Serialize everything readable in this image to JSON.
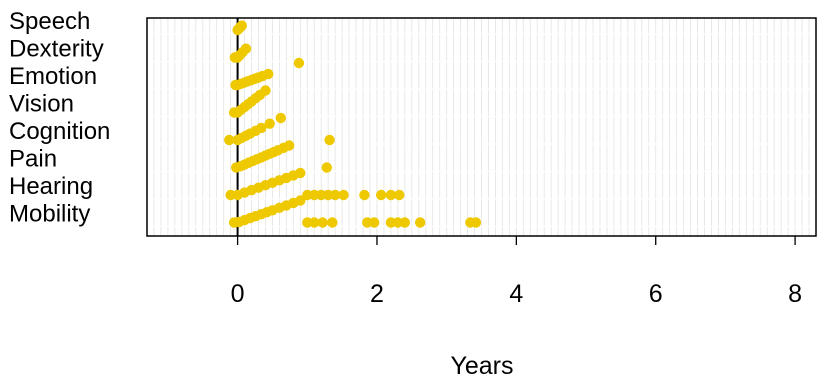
{
  "colors": {
    "points": "#EEC900",
    "zero_line": "#000000",
    "grid": "#E6E6E6",
    "frame": "#000000",
    "background": "#FFFFFF"
  },
  "chart_data": {
    "type": "scatter",
    "title": "",
    "xlabel": "Years",
    "ylabel": "",
    "xlim": [
      -1.3,
      8.3
    ],
    "x_ticks": [
      0,
      2,
      4,
      6,
      8
    ],
    "x_tick_labels": [
      "0",
      "2",
      "4",
      "6",
      "8"
    ],
    "categories": [
      "Speech",
      "Dexterity",
      "Emotion",
      "Vision",
      "Cognition",
      "Pain",
      "Hearing",
      "Mobility"
    ],
    "reference_line_x": 0,
    "grid": "vertical, light",
    "series": [
      {
        "category": "Speech",
        "x": [
          0.0,
          0.02,
          0.04,
          0.06
        ]
      },
      {
        "category": "Dexterity",
        "x": [
          -0.04,
          0.0,
          0.03,
          0.07,
          0.12
        ]
      },
      {
        "category": "Emotion",
        "x": [
          -0.03,
          0.0,
          0.05,
          0.1,
          0.15,
          0.2,
          0.25,
          0.3,
          0.36,
          0.44,
          0.88
        ]
      },
      {
        "category": "Vision",
        "x": [
          -0.05,
          0.0,
          0.05,
          0.1,
          0.15,
          0.2,
          0.26,
          0.32,
          0.4
        ]
      },
      {
        "category": "Cognition",
        "x": [
          -0.12,
          0.0,
          0.06,
          0.12,
          0.18,
          0.26,
          0.34,
          0.46,
          0.62,
          1.32
        ]
      },
      {
        "category": "Pain",
        "x": [
          -0.02,
          0.04,
          0.1,
          0.16,
          0.22,
          0.28,
          0.34,
          0.4,
          0.46,
          0.52,
          0.58,
          0.66,
          0.74,
          1.28
        ]
      },
      {
        "category": "Hearing",
        "x": [
          -0.1,
          0.0,
          0.1,
          0.2,
          0.3,
          0.4,
          0.5,
          0.6,
          0.7,
          0.8,
          0.9,
          1.0,
          1.1,
          1.2,
          1.3,
          1.4,
          1.52,
          1.82,
          2.06,
          2.2,
          2.32
        ]
      },
      {
        "category": "Mobility",
        "x": [
          -0.05,
          0.02,
          0.1,
          0.18,
          0.26,
          0.34,
          0.42,
          0.5,
          0.6,
          0.7,
          0.8,
          0.9,
          1.0,
          1.1,
          1.22,
          1.36,
          1.86,
          1.96,
          2.2,
          2.3,
          2.4,
          2.62,
          3.34,
          3.42
        ]
      }
    ]
  }
}
